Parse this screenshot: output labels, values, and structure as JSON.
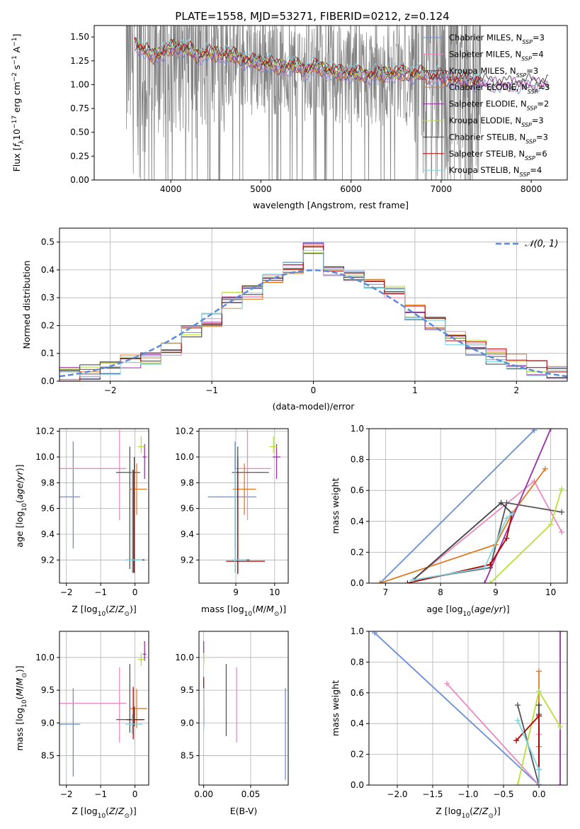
{
  "title": "PLATE=1558, MJD=53271, FIBERID=0212, z=0.124",
  "colors": {
    "spectrum": "#808080",
    "normal": "#5b8bd9",
    "series": [
      "#6a8fd8",
      "#e98ac0",
      "#555555",
      "#e07b20",
      "#9b2fa8",
      "#b5e03a",
      "#404040",
      "#b30000",
      "#7fd6e0"
    ]
  },
  "models": [
    {
      "label": "Chabrier MILES",
      "nssp": "3"
    },
    {
      "label": "Salpeter MILES",
      "nssp": "4"
    },
    {
      "label": "Kroupa MILES",
      "nssp": "3"
    },
    {
      "label": "Chabrier ELODIE",
      "nssp": "3"
    },
    {
      "label": "Salpeter ELODIE",
      "nssp": "2"
    },
    {
      "label": "Kroupa ELODIE",
      "nssp": "3"
    },
    {
      "label": "Chabrier STELIB",
      "nssp": "3"
    },
    {
      "label": "Salpeter STELIB",
      "nssp": "6"
    },
    {
      "label": "Kroupa STELIB",
      "nssp": "4"
    }
  ],
  "chart_data": [
    {
      "id": "spectrum",
      "type": "line",
      "xlabel": "wavelength [Angstrom, rest frame]",
      "ylabel": "Flux [f_λ 10^-17 erg cm^-2 s^-1 A^-1]",
      "xlim": [
        3150,
        8400
      ],
      "ylim": [
        0,
        1.62
      ],
      "xticks": [
        4000,
        5000,
        6000,
        7000,
        8000
      ],
      "yticks": [
        "0.00",
        "0.25",
        "0.50",
        "0.75",
        "1.00",
        "1.25",
        "1.50"
      ],
      "legend": "right",
      "continuum": {
        "x": [
          3600,
          3700,
          3800,
          3900,
          4000,
          4100,
          4200,
          4300,
          4400,
          4500,
          4600,
          4700,
          4800,
          4900,
          5000,
          5100,
          5200,
          5300,
          5400,
          5500,
          5600,
          5700,
          5800,
          5900,
          6000,
          6100,
          6200,
          6300,
          6400,
          6500,
          6600,
          6700,
          6800,
          6900,
          7000,
          7100,
          7200,
          7300,
          7400,
          7600,
          7800,
          8000,
          8200
        ],
        "y": [
          1.45,
          1.36,
          1.3,
          1.33,
          1.38,
          1.4,
          1.36,
          1.31,
          1.33,
          1.32,
          1.32,
          1.3,
          1.27,
          1.23,
          1.24,
          1.22,
          1.18,
          1.2,
          1.19,
          1.16,
          1.18,
          1.17,
          1.14,
          1.12,
          1.13,
          1.1,
          1.11,
          1.1,
          1.12,
          1.12,
          1.11,
          1.12,
          1.1,
          1.09,
          1.08,
          1.06,
          1.05,
          1.03,
          1.04,
          1.02,
          1.01,
          1.03,
          1.02
        ]
      }
    },
    {
      "id": "residuals",
      "type": "step-histogram",
      "xlabel": "(data-model)/error",
      "ylabel": "Normed distribution",
      "xlim": [
        -2.5,
        2.5
      ],
      "ylim": [
        0,
        0.55
      ],
      "xticks": [
        -2,
        -1,
        0,
        1,
        2
      ],
      "xtick_labels": [
        "−2",
        "−1",
        "0",
        "1",
        "2"
      ],
      "yticks": [
        "0.0",
        "0.1",
        "0.2",
        "0.3",
        "0.4",
        "0.5"
      ],
      "legend": "top-right",
      "legend_label": "𝒩(0, 1)",
      "bins": [
        -2.5,
        -2.3,
        -2.1,
        -1.9,
        -1.7,
        -1.5,
        -1.3,
        -1.1,
        -0.9,
        -0.7,
        -0.5,
        -0.3,
        -0.1,
        0.1,
        0.3,
        0.5,
        0.7,
        0.9,
        1.1,
        1.3,
        1.5,
        1.7,
        1.9,
        2.1,
        2.3,
        2.5
      ],
      "hist_base": [
        0.02,
        0.03,
        0.05,
        0.07,
        0.09,
        0.12,
        0.17,
        0.22,
        0.29,
        0.32,
        0.37,
        0.41,
        0.47,
        0.4,
        0.37,
        0.35,
        0.32,
        0.25,
        0.2,
        0.16,
        0.12,
        0.09,
        0.07,
        0.05,
        0.03
      ]
    },
    {
      "id": "age-Z",
      "type": "scatter-errorbar",
      "xlabel": "Z [log10(Z/Z⊙)]",
      "ylabel": "age  [log10(age/yr)]",
      "xlim": [
        -2.2,
        0.4
      ],
      "ylim": [
        9.02,
        10.22
      ],
      "xticks": [
        -2,
        -1,
        0
      ],
      "xtick_labels": [
        "−2",
        "−1",
        "0"
      ],
      "yticks": [
        9.2,
        9.4,
        9.6,
        9.8,
        10.0,
        10.2
      ],
      "ytick_labels": [
        "9.2",
        "9.4",
        "9.6",
        "9.8",
        "10.0",
        "10.2"
      ],
      "points": [
        {
          "x": -1.8,
          "y": 9.69,
          "xerr": [
            1.8,
            0.2
          ],
          "yerr": [
            0.4,
            0.43
          ],
          "c": 0
        },
        {
          "x": -0.45,
          "y": 9.91,
          "xerr": [
            1.8,
            0.2
          ],
          "yerr": [
            0.4,
            0.3
          ],
          "c": 1
        },
        {
          "x": -0.15,
          "y": 9.88,
          "xerr": [
            0.4,
            0.3
          ],
          "yerr": [
            0.75,
            0.2
          ],
          "c": 2
        },
        {
          "x": 0.05,
          "y": 9.75,
          "xerr": [
            0.2,
            0.3
          ],
          "yerr": [
            0.2,
            0.2
          ],
          "c": 3
        },
        {
          "x": 0.28,
          "y": 10.0,
          "xerr": [
            0.05,
            0.05
          ],
          "yerr": [
            0.17,
            0.1
          ],
          "c": 4
        },
        {
          "x": 0.18,
          "y": 10.08,
          "xerr": [
            0.1,
            0.1
          ],
          "yerr": [
            0.05,
            0.08
          ],
          "c": 5
        },
        {
          "x": -0.02,
          "y": 9.2,
          "xerr": [
            0.2,
            0.3
          ],
          "yerr": [
            0.1,
            0.8
          ],
          "c": 6
        },
        {
          "x": -0.05,
          "y": 9.2,
          "xerr": [
            0.2,
            0.3
          ],
          "yerr": [
            0.1,
            0.7
          ],
          "c": 7
        },
        {
          "x": -0.08,
          "y": 9.2,
          "xerr": [
            0.2,
            0.3
          ],
          "yerr": [
            0.1,
            0.7
          ],
          "c": 8
        }
      ]
    },
    {
      "id": "age-mass",
      "type": "scatter-errorbar",
      "xlabel": "mass [log10(M/M⊙)]",
      "ylabel": "",
      "xlim": [
        8.05,
        10.35
      ],
      "ylim": [
        9.02,
        10.22
      ],
      "xticks": [
        9,
        10
      ],
      "xtick_labels": [
        "9",
        "10"
      ],
      "yticks": [
        9.2,
        9.4,
        9.6,
        9.8,
        10.0,
        10.2
      ],
      "ytick_labels": [
        "9.2",
        "9.4",
        "9.6",
        "9.8",
        "10.0",
        "10.2"
      ],
      "points": [
        {
          "x": 8.98,
          "y": 9.69,
          "xerr": [
            0.7,
            0.55
          ],
          "yerr": [
            0.4,
            0.43
          ],
          "c": 0
        },
        {
          "x": 9.3,
          "y": 9.91,
          "xerr": [
            0.3,
            0.6
          ],
          "yerr": [
            0.4,
            0.3
          ],
          "c": 1
        },
        {
          "x": 9.05,
          "y": 9.88,
          "xerr": [
            0.15,
            0.8
          ],
          "yerr": [
            0.75,
            0.2
          ],
          "c": 2
        },
        {
          "x": 9.22,
          "y": 9.75,
          "xerr": [
            0.3,
            0.3
          ],
          "yerr": [
            0.2,
            0.2
          ],
          "c": 3
        },
        {
          "x": 10.05,
          "y": 10.0,
          "xerr": [
            0.1,
            0.1
          ],
          "yerr": [
            0.17,
            0.1
          ],
          "c": 4
        },
        {
          "x": 9.97,
          "y": 10.08,
          "xerr": [
            0.1,
            0.1
          ],
          "yerr": [
            0.05,
            0.08
          ],
          "c": 5
        },
        {
          "x": 9.05,
          "y": 9.2,
          "xerr": [
            0.1,
            0.3
          ],
          "yerr": [
            0.1,
            0.8
          ],
          "c": 6
        },
        {
          "x": 9.05,
          "y": 9.19,
          "xerr": [
            0.3,
            0.7
          ],
          "yerr": [
            0.1,
            0.7
          ],
          "c": 7
        },
        {
          "x": 8.98,
          "y": 9.2,
          "xerr": [
            0.1,
            0.3
          ],
          "yerr": [
            0.1,
            0.7
          ],
          "c": 8
        }
      ]
    },
    {
      "id": "weight-age",
      "type": "line",
      "xlabel": "age  [log10(age/yr)]",
      "ylabel": "mass weight",
      "xlim": [
        6.7,
        10.3
      ],
      "ylim": [
        0,
        1.0
      ],
      "xticks": [
        7,
        8,
        9,
        10
      ],
      "xtick_labels": [
        "7",
        "8",
        "9",
        "10"
      ],
      "yticks": [
        0.0,
        0.2,
        0.4,
        0.6,
        0.8,
        1.0
      ],
      "ytick_labels": [
        "0.0",
        "0.2",
        "0.4",
        "0.6",
        "0.8",
        "1.0"
      ],
      "series": [
        {
          "c": 0,
          "x": [
            6.9,
            9.7
          ],
          "y": [
            0.0,
            0.99
          ]
        },
        {
          "c": 1,
          "x": [
            7.5,
            9.7,
            10.2
          ],
          "y": [
            0.02,
            0.66,
            0.33
          ]
        },
        {
          "c": 2,
          "x": [
            7.5,
            8.9,
            9.2,
            10.2
          ],
          "y": [
            0.02,
            0.1,
            0.52,
            0.46
          ]
        },
        {
          "c": 3,
          "x": [
            6.9,
            9.0,
            9.3,
            9.9
          ],
          "y": [
            0.0,
            0.25,
            0.45,
            0.74
          ]
        },
        {
          "c": 4,
          "x": [
            8.8,
            10.0
          ],
          "y": [
            0.0,
            1.0
          ]
        },
        {
          "c": 5,
          "x": [
            8.9,
            10.0,
            10.2
          ],
          "y": [
            0.0,
            0.38,
            0.61
          ]
        },
        {
          "c": 6,
          "x": [
            7.5,
            9.1,
            9.3
          ],
          "y": [
            0.02,
            0.52,
            0.45
          ]
        },
        {
          "c": 7,
          "x": [
            7.4,
            8.9,
            9.2,
            9.3
          ],
          "y": [
            0.0,
            0.12,
            0.29,
            0.45
          ]
        },
        {
          "c": 8,
          "x": [
            7.5,
            8.8,
            9.2,
            9.3
          ],
          "y": [
            0.02,
            0.1,
            0.42,
            0.45
          ]
        }
      ]
    },
    {
      "id": "mass-Z",
      "type": "scatter-errorbar",
      "xlabel": "Z [log10(Z/Z⊙)]",
      "ylabel": "mass [log10(M/M⊙)]",
      "xlim": [
        -2.2,
        0.4
      ],
      "ylim": [
        8.05,
        10.4
      ],
      "xticks": [
        -2,
        -1,
        0
      ],
      "xtick_labels": [
        "−2",
        "−1",
        "0"
      ],
      "yticks": [
        8.5,
        9.0,
        9.5,
        10.0
      ],
      "ytick_labels": [
        "8.5",
        "9.0",
        "9.5",
        "10.0"
      ],
      "points": [
        {
          "x": -1.8,
          "y": 8.98,
          "xerr": [
            1.8,
            0.2
          ],
          "yerr": [
            0.8,
            0.55
          ],
          "c": 0
        },
        {
          "x": -0.45,
          "y": 9.3,
          "xerr": [
            1.8,
            0.2
          ],
          "yerr": [
            0.6,
            0.55
          ],
          "c": 1
        },
        {
          "x": -0.15,
          "y": 9.05,
          "xerr": [
            0.4,
            0.3
          ],
          "yerr": [
            0.2,
            0.85
          ],
          "c": 2
        },
        {
          "x": 0.05,
          "y": 9.22,
          "xerr": [
            0.2,
            0.3
          ],
          "yerr": [
            0.3,
            0.3
          ],
          "c": 3
        },
        {
          "x": 0.28,
          "y": 10.05,
          "xerr": [
            0.05,
            0.05
          ],
          "yerr": [
            0.1,
            0.2
          ],
          "c": 4
        },
        {
          "x": 0.18,
          "y": 9.97,
          "xerr": [
            0.1,
            0.1
          ],
          "yerr": [
            0.1,
            0.1
          ],
          "c": 5
        },
        {
          "x": -0.02,
          "y": 9.05,
          "xerr": [
            0.2,
            0.3
          ],
          "yerr": [
            0.1,
            0.2
          ],
          "c": 6
        },
        {
          "x": -0.05,
          "y": 9.05,
          "xerr": [
            0.2,
            0.3
          ],
          "yerr": [
            0.3,
            0.5
          ],
          "c": 7
        },
        {
          "x": -0.08,
          "y": 8.98,
          "xerr": [
            0.2,
            0.3
          ],
          "yerr": [
            0.15,
            0.15
          ],
          "c": 8
        }
      ]
    },
    {
      "id": "mass-ebv",
      "type": "scatter-errorbar",
      "xlabel": "E(B-V)",
      "ylabel": "",
      "xlim": [
        -0.005,
        0.09
      ],
      "ylim": [
        8.05,
        10.4
      ],
      "xticks": [
        0,
        0.05
      ],
      "xtick_labels": [
        "0.00",
        "0.05"
      ],
      "yticks": [
        8.5,
        9.0,
        9.5,
        10.0
      ],
      "ytick_labels": [
        "8.5",
        "9.0",
        "9.5",
        "10.0"
      ],
      "points": [
        {
          "x": 0.087,
          "y": 8.98,
          "xerr": [
            0,
            0
          ],
          "yerr": [
            0.85,
            0.55
          ],
          "c": 0
        },
        {
          "x": 0.035,
          "y": 9.3,
          "xerr": [
            0,
            0
          ],
          "yerr": [
            0.6,
            0.55
          ],
          "c": 1
        },
        {
          "x": 0.024,
          "y": 9.05,
          "xerr": [
            0,
            0
          ],
          "yerr": [
            0.25,
            0.85
          ],
          "c": 2
        },
        {
          "x": 0.0,
          "y": 10.05,
          "xerr": [
            0,
            0
          ],
          "yerr": [
            0.1,
            0.2
          ],
          "c": 4
        },
        {
          "x": 0.0,
          "y": 9.97,
          "xerr": [
            0,
            0
          ],
          "yerr": [
            0.1,
            0.1
          ],
          "c": 5
        },
        {
          "x": 0.0,
          "y": 9.05,
          "xerr": [
            0,
            0
          ],
          "yerr": [
            0.1,
            0.2
          ],
          "c": 6
        },
        {
          "x": 0.0,
          "y": 9.3,
          "xerr": [
            0,
            0
          ],
          "yerr": [
            0.3,
            0.4
          ],
          "c": 7
        },
        {
          "x": 0.0,
          "y": 8.98,
          "xerr": [
            0,
            0
          ],
          "yerr": [
            0.1,
            0.55
          ],
          "c": 8
        }
      ]
    },
    {
      "id": "weight-Z",
      "type": "line",
      "xlabel": "Z [log10(Z/Z⊙)]",
      "ylabel": "mass weight",
      "xlim": [
        -2.4,
        0.4
      ],
      "ylim": [
        0,
        1.0
      ],
      "xticks": [
        -2.0,
        -1.5,
        -1.0,
        -0.5,
        0.0
      ],
      "xtick_labels": [
        "−2.0",
        "−1.5",
        "−1.0",
        "−0.5",
        "0.0"
      ],
      "yticks": [
        0.0,
        0.2,
        0.4,
        0.6,
        0.8,
        1.0
      ],
      "ytick_labels": [
        "0.0",
        "0.2",
        "0.4",
        "0.6",
        "0.8",
        "1.0"
      ],
      "series": [
        {
          "c": 0,
          "x": [
            -2.32,
            0.0
          ],
          "y": [
            0.99,
            0.0
          ]
        },
        {
          "c": 1,
          "x": [
            -1.3,
            0.0,
            0.0
          ],
          "y": [
            0.66,
            0.0,
            0.33
          ]
        },
        {
          "c": 2,
          "x": [
            -0.3,
            0.0,
            0.0
          ],
          "y": [
            0.52,
            0.0,
            0.46
          ]
        },
        {
          "c": 3,
          "x": [
            0.0,
            0.0,
            0.0
          ],
          "y": [
            0.74,
            0.25,
            0.0
          ]
        },
        {
          "c": 4,
          "x": [
            0.3,
            0.3
          ],
          "y": [
            0.0,
            1.0
          ]
        },
        {
          "c": 5,
          "x": [
            -0.3,
            0.0,
            0.3
          ],
          "y": [
            0.0,
            0.61,
            0.38
          ]
        },
        {
          "c": 6,
          "x": [
            0.0,
            0.0,
            0.0
          ],
          "y": [
            0.52,
            0.1,
            0.0
          ]
        },
        {
          "c": 7,
          "x": [
            -0.32,
            0.0,
            0.0
          ],
          "y": [
            0.29,
            0.45,
            0.0
          ]
        },
        {
          "c": 8,
          "x": [
            -0.3,
            0.0,
            0.0
          ],
          "y": [
            0.42,
            0.1,
            0.0
          ]
        }
      ]
    }
  ]
}
